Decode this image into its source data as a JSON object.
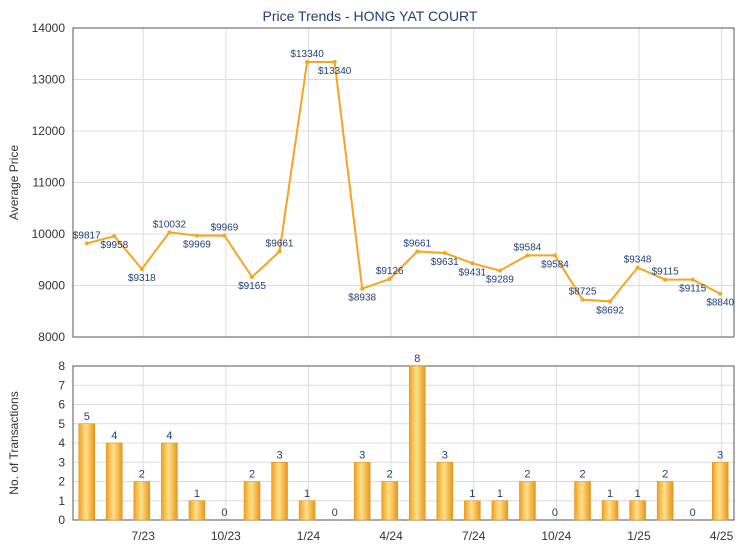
{
  "chart_data": [
    {
      "type": "line",
      "title": "Price Trends - HONG YAT COURT",
      "ylabel": "Average Price",
      "ylim": [
        8000,
        14000
      ],
      "yticks": [
        "14000",
        "13000",
        "12000",
        "11000",
        "10000",
        "9000",
        "8000"
      ],
      "grid": true,
      "line_color": "#f5a51e",
      "points": [
        {
          "x": 0,
          "y": 9817,
          "label": "$9817"
        },
        {
          "x": 1,
          "y": 9958,
          "label": "$9958"
        },
        {
          "x": 2,
          "y": 9318,
          "label": "$9318"
        },
        {
          "x": 3,
          "y": 10032,
          "label": "$10032"
        },
        {
          "x": 4,
          "y": 9969,
          "label": "$9969"
        },
        {
          "x": 5,
          "y": 9969,
          "label": "$9969"
        },
        {
          "x": 6,
          "y": 9165,
          "label": "$9165"
        },
        {
          "x": 7,
          "y": 9661,
          "label": "$9661"
        },
        {
          "x": 8,
          "y": 13340,
          "label": "$13340"
        },
        {
          "x": 9,
          "y": 13340,
          "label": "$13340"
        },
        {
          "x": 10,
          "y": 8938,
          "label": "$8938"
        },
        {
          "x": 11,
          "y": 9126,
          "label": "$9126"
        },
        {
          "x": 12,
          "y": 9661,
          "label": "$9661"
        },
        {
          "x": 13,
          "y": 9631,
          "label": "$9631"
        },
        {
          "x": 14,
          "y": 9431,
          "label": "$9431"
        },
        {
          "x": 15,
          "y": 9289,
          "label": "$9289"
        },
        {
          "x": 16,
          "y": 9584,
          "label": "$9584"
        },
        {
          "x": 17,
          "y": 9584,
          "label": "$9584"
        },
        {
          "x": 18,
          "y": 8725,
          "label": "$8725"
        },
        {
          "x": 19,
          "y": 8692,
          "label": "$8692"
        },
        {
          "x": 20,
          "y": 9348,
          "label": "$9348"
        },
        {
          "x": 21,
          "y": 9115,
          "label": "$9115"
        },
        {
          "x": 22,
          "y": 9115,
          "label": "$9115"
        },
        {
          "x": 23,
          "y": 8840,
          "label": "$8840"
        }
      ]
    },
    {
      "type": "bar",
      "ylabel": "No. of Transactions",
      "ylim": [
        0,
        8
      ],
      "yticks": [
        "8",
        "7",
        "6",
        "5",
        "4",
        "3",
        "2",
        "1",
        "0"
      ],
      "grid": true,
      "bar_color": "#f5b731",
      "x_tick_labels": [
        "7/23",
        "10/23",
        "1/24",
        "4/24",
        "7/24",
        "10/24",
        "1/25",
        "4/25"
      ],
      "values": [
        5,
        4,
        2,
        4,
        1,
        0,
        2,
        3,
        1,
        0,
        3,
        2,
        8,
        3,
        1,
        1,
        2,
        0,
        2,
        1,
        1,
        2,
        0,
        3
      ]
    }
  ]
}
